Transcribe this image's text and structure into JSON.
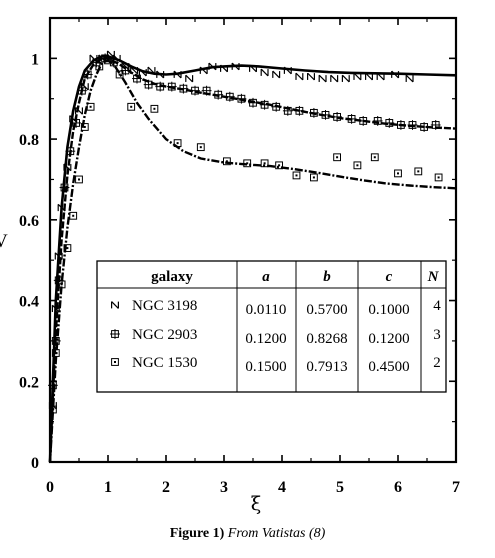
{
  "chart_data": {
    "type": "scatter",
    "xlabel": "ξ",
    "ylabel": "V",
    "xlim": [
      0,
      7
    ],
    "ylim": [
      0,
      1.1
    ],
    "x_ticks": [
      "0",
      "1",
      "2",
      "3",
      "4",
      "5",
      "6",
      "7"
    ],
    "y_ticks": [
      "0",
      "0.2",
      "0.4",
      "0.6",
      "0.8",
      "1"
    ],
    "series": [
      {
        "name": "NGC 3198",
        "marker": "N",
        "line_style": "solid",
        "points": [
          [
            0.05,
            0.14
          ],
          [
            0.1,
            0.38
          ],
          [
            0.15,
            0.51
          ],
          [
            0.2,
            0.63
          ],
          [
            0.3,
            0.73
          ],
          [
            0.4,
            0.85
          ],
          [
            0.5,
            0.87
          ],
          [
            0.6,
            0.93
          ],
          [
            0.75,
            1.0
          ],
          [
            0.9,
            1.0
          ],
          [
            1.05,
            1.01
          ],
          [
            1.15,
            1.0
          ],
          [
            1.3,
            0.98
          ],
          [
            1.45,
            0.97
          ],
          [
            1.6,
            0.965
          ],
          [
            1.75,
            0.97
          ],
          [
            1.9,
            0.96
          ],
          [
            2.2,
            0.96
          ],
          [
            2.4,
            0.95
          ],
          [
            2.65,
            0.97
          ],
          [
            2.8,
            0.98
          ],
          [
            3.0,
            0.975
          ],
          [
            3.2,
            0.98
          ],
          [
            3.5,
            0.975
          ],
          [
            3.7,
            0.965
          ],
          [
            3.9,
            0.96
          ],
          [
            4.1,
            0.97
          ],
          [
            4.3,
            0.955
          ],
          [
            4.5,
            0.955
          ],
          [
            4.7,
            0.95
          ],
          [
            4.9,
            0.95
          ],
          [
            5.1,
            0.95
          ],
          [
            5.3,
            0.955
          ],
          [
            5.5,
            0.955
          ],
          [
            5.7,
            0.955
          ],
          [
            5.95,
            0.96
          ],
          [
            6.2,
            0.95
          ]
        ],
        "fit_curve": [
          [
            0,
            0.0
          ],
          [
            0.1,
            0.4
          ],
          [
            0.2,
            0.63
          ],
          [
            0.3,
            0.78
          ],
          [
            0.4,
            0.87
          ],
          [
            0.5,
            0.93
          ],
          [
            0.6,
            0.97
          ],
          [
            0.75,
            0.995
          ],
          [
            0.9,
            1.005
          ],
          [
            1.0,
            1.005
          ],
          [
            1.2,
            0.995
          ],
          [
            1.4,
            0.98
          ],
          [
            1.6,
            0.968
          ],
          [
            1.8,
            0.962
          ],
          [
            2.0,
            0.96
          ],
          [
            2.2,
            0.962
          ],
          [
            2.5,
            0.97
          ],
          [
            2.8,
            0.978
          ],
          [
            3.0,
            0.98
          ],
          [
            3.3,
            0.982
          ],
          [
            3.6,
            0.98
          ],
          [
            4.0,
            0.975
          ],
          [
            4.4,
            0.97
          ],
          [
            4.8,
            0.966
          ],
          [
            5.2,
            0.964
          ],
          [
            5.6,
            0.963
          ],
          [
            6.0,
            0.962
          ],
          [
            6.5,
            0.96
          ],
          [
            7.0,
            0.958
          ]
        ]
      },
      {
        "name": "NGC 2903",
        "marker": "hash",
        "line_style": "dashed",
        "points": [
          [
            0.05,
            0.19
          ],
          [
            0.1,
            0.3
          ],
          [
            0.15,
            0.45
          ],
          [
            0.25,
            0.68
          ],
          [
            0.35,
            0.77
          ],
          [
            0.45,
            0.84
          ],
          [
            0.55,
            0.92
          ],
          [
            0.65,
            0.96
          ],
          [
            0.8,
            0.99
          ],
          [
            0.95,
            1.0
          ],
          [
            1.1,
            0.99
          ],
          [
            1.3,
            0.97
          ],
          [
            1.5,
            0.95
          ],
          [
            1.7,
            0.935
          ],
          [
            1.9,
            0.93
          ],
          [
            2.1,
            0.93
          ],
          [
            2.3,
            0.925
          ],
          [
            2.5,
            0.92
          ],
          [
            2.7,
            0.92
          ],
          [
            2.9,
            0.91
          ],
          [
            3.1,
            0.905
          ],
          [
            3.3,
            0.9
          ],
          [
            3.5,
            0.89
          ],
          [
            3.7,
            0.885
          ],
          [
            3.9,
            0.88
          ],
          [
            4.1,
            0.87
          ],
          [
            4.3,
            0.87
          ],
          [
            4.55,
            0.865
          ],
          [
            4.75,
            0.86
          ],
          [
            4.95,
            0.855
          ],
          [
            5.2,
            0.85
          ],
          [
            5.4,
            0.845
          ],
          [
            5.65,
            0.845
          ],
          [
            5.85,
            0.84
          ],
          [
            6.05,
            0.835
          ],
          [
            6.25,
            0.835
          ],
          [
            6.45,
            0.83
          ],
          [
            6.65,
            0.835
          ]
        ],
        "fit_curve": [
          [
            0,
            0.0
          ],
          [
            0.1,
            0.32
          ],
          [
            0.2,
            0.55
          ],
          [
            0.3,
            0.71
          ],
          [
            0.4,
            0.82
          ],
          [
            0.5,
            0.89
          ],
          [
            0.6,
            0.95
          ],
          [
            0.75,
            0.985
          ],
          [
            0.9,
            1.0
          ],
          [
            1.0,
            1.0
          ],
          [
            1.2,
            0.985
          ],
          [
            1.4,
            0.965
          ],
          [
            1.6,
            0.948
          ],
          [
            1.8,
            0.937
          ],
          [
            2.0,
            0.93
          ],
          [
            2.3,
            0.923
          ],
          [
            2.6,
            0.915
          ],
          [
            3.0,
            0.905
          ],
          [
            3.4,
            0.895
          ],
          [
            3.8,
            0.885
          ],
          [
            4.2,
            0.873
          ],
          [
            4.6,
            0.862
          ],
          [
            5.0,
            0.852
          ],
          [
            5.4,
            0.845
          ],
          [
            5.8,
            0.838
          ],
          [
            6.2,
            0.833
          ],
          [
            6.6,
            0.829
          ],
          [
            7.0,
            0.826
          ]
        ]
      },
      {
        "name": "NGC 1530",
        "marker": "square",
        "line_style": "dashdot",
        "points": [
          [
            0.05,
            0.13
          ],
          [
            0.1,
            0.27
          ],
          [
            0.2,
            0.44
          ],
          [
            0.3,
            0.53
          ],
          [
            0.4,
            0.61
          ],
          [
            0.5,
            0.7
          ],
          [
            0.6,
            0.83
          ],
          [
            0.7,
            0.88
          ],
          [
            0.85,
            0.98
          ],
          [
            1.0,
            0.995
          ],
          [
            1.2,
            0.96
          ],
          [
            1.4,
            0.88
          ],
          [
            1.8,
            0.875
          ],
          [
            2.2,
            0.79
          ],
          [
            2.6,
            0.78
          ],
          [
            3.05,
            0.745
          ],
          [
            3.4,
            0.74
          ],
          [
            3.7,
            0.74
          ],
          [
            3.95,
            0.735
          ],
          [
            4.25,
            0.71
          ],
          [
            4.55,
            0.705
          ],
          [
            4.95,
            0.755
          ],
          [
            5.3,
            0.735
          ],
          [
            5.6,
            0.755
          ],
          [
            6.0,
            0.715
          ],
          [
            6.35,
            0.72
          ],
          [
            6.7,
            0.705
          ]
        ],
        "fit_curve": [
          [
            0,
            0.0
          ],
          [
            0.1,
            0.25
          ],
          [
            0.2,
            0.44
          ],
          [
            0.3,
            0.58
          ],
          [
            0.4,
            0.69
          ],
          [
            0.5,
            0.78
          ],
          [
            0.6,
            0.86
          ],
          [
            0.7,
            0.92
          ],
          [
            0.8,
            0.96
          ],
          [
            0.9,
            0.99
          ],
          [
            1.0,
            0.995
          ],
          [
            1.1,
            0.985
          ],
          [
            1.3,
            0.94
          ],
          [
            1.5,
            0.89
          ],
          [
            1.7,
            0.85
          ],
          [
            2.0,
            0.8
          ],
          [
            2.3,
            0.77
          ],
          [
            2.6,
            0.752
          ],
          [
            3.0,
            0.742
          ],
          [
            3.4,
            0.737
          ],
          [
            3.8,
            0.733
          ],
          [
            4.2,
            0.726
          ],
          [
            4.6,
            0.717
          ],
          [
            5.0,
            0.707
          ],
          [
            5.4,
            0.698
          ],
          [
            5.8,
            0.69
          ],
          [
            6.2,
            0.685
          ],
          [
            6.6,
            0.681
          ],
          [
            7.0,
            0.678
          ]
        ]
      }
    ],
    "legend_table": {
      "headers": [
        "galaxy",
        "a",
        "b",
        "c",
        "N"
      ],
      "rows": [
        {
          "galaxy": "NGC 3198",
          "marker": "N",
          "a": "0.0110",
          "b": "0.5700",
          "c": "0.1000",
          "N": "4"
        },
        {
          "galaxy": "NGC 2903",
          "marker": "hash",
          "a": "0.1200",
          "b": "0.8268",
          "c": "0.1200",
          "N": "3"
        },
        {
          "galaxy": "NGC 1530",
          "marker": "square",
          "a": "0.1500",
          "b": "0.7913",
          "c": "0.4500",
          "N": "2"
        }
      ]
    }
  },
  "caption": {
    "lead": "Figure 1)",
    "source": "From Vatistas (8)"
  }
}
